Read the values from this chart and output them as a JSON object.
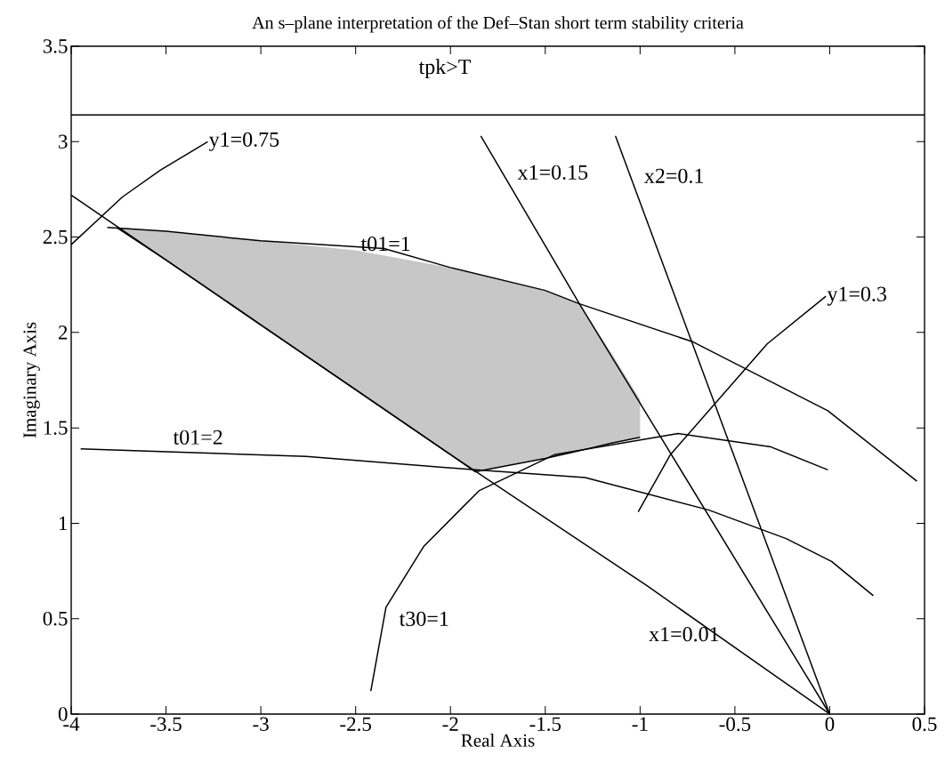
{
  "chart_data": {
    "type": "line",
    "title": "An s–plane interpretation of the Def–Stan short term stability criteria",
    "xlabel": "Real Axis",
    "ylabel": "Imaginary Axis",
    "xlim": [
      -4,
      0.5
    ],
    "ylim": [
      0,
      3.5
    ],
    "xticks": [
      -4,
      -3.5,
      -3,
      -2.5,
      -2,
      -1.5,
      -1,
      -0.5,
      0,
      0.5
    ],
    "yticks": [
      0,
      0.5,
      1,
      1.5,
      2,
      2.5,
      3,
      3.5
    ],
    "grid": false,
    "series": [
      {
        "name": "tpk>T",
        "color": "#000000",
        "x": [
          -4,
          0.5
        ],
        "values": [
          3.14,
          3.14
        ]
      },
      {
        "name": "y1=0.75",
        "color": "#000000",
        "x": [
          -4,
          -3.73,
          -3.53,
          -3.28
        ],
        "values": [
          2.46,
          2.71,
          2.85,
          3.0
        ]
      },
      {
        "name": "x1=0.01",
        "color": "#000000",
        "x": [
          -4,
          -3,
          -2,
          -0.96,
          0
        ],
        "values": [
          2.72,
          2.04,
          1.36,
          0.67,
          0
        ]
      },
      {
        "name": "x1=0.15",
        "color": "#000000",
        "x": [
          -1.84,
          -1.32,
          0
        ],
        "values": [
          3.03,
          2.15,
          0
        ]
      },
      {
        "name": "x2=0.1",
        "color": "#000000",
        "x": [
          -1.13,
          0
        ],
        "values": [
          3.03,
          0
        ]
      },
      {
        "name": "y1=0.3",
        "color": "#000000",
        "x": [
          -1.01,
          -0.84,
          -0.33,
          -0.02
        ],
        "values": [
          1.06,
          1.36,
          1.94,
          2.19
        ]
      },
      {
        "name": "t01=1",
        "color": "#000000",
        "x": [
          -3.81,
          -3.5,
          -3.0,
          -2.35,
          -2.0,
          -1.5,
          -1.32,
          -0.72,
          -0.01,
          0.46
        ],
        "values": [
          2.55,
          2.53,
          2.48,
          2.44,
          2.34,
          2.22,
          2.15,
          1.95,
          1.59,
          1.22
        ]
      },
      {
        "name": "t01=2",
        "color": "#000000",
        "x": [
          -3.95,
          -2.76,
          -1.87,
          -1.29,
          -0.64,
          -0.23,
          0.01,
          0.23
        ],
        "values": [
          1.39,
          1.35,
          1.28,
          1.24,
          1.07,
          0.92,
          0.8,
          0.62
        ]
      },
      {
        "name": "t30=1",
        "color": "#000000",
        "x": [
          -2.42,
          -2.34,
          -2.14,
          -1.93,
          -1.85,
          -1.45,
          -0.8,
          -0.31,
          -0.01
        ],
        "values": [
          0.12,
          0.56,
          0.88,
          1.09,
          1.17,
          1.36,
          1.47,
          1.4,
          1.28
        ]
      },
      {
        "color": "#000000",
        "x": [
          -3.76,
          -3.5,
          -3.0,
          -2.5,
          -2.0,
          -1.87,
          -1.5,
          -1.32,
          -1.15,
          -1.0
        ],
        "values": [
          2.55,
          2.38,
          2.04,
          1.7,
          1.36,
          1.27,
          1.34,
          1.38,
          1.42,
          1.45
        ],
        "lower": [
          2.55,
          2.38,
          2.04,
          1.7,
          1.36,
          1.27,
          1.34,
          1.38,
          1.42,
          1.45
        ],
        "upper": [
          2.55,
          2.53,
          2.48,
          2.43,
          2.34,
          2.31,
          2.22,
          2.15,
          1.89,
          1.65
        ]
      }
    ]
  }
}
